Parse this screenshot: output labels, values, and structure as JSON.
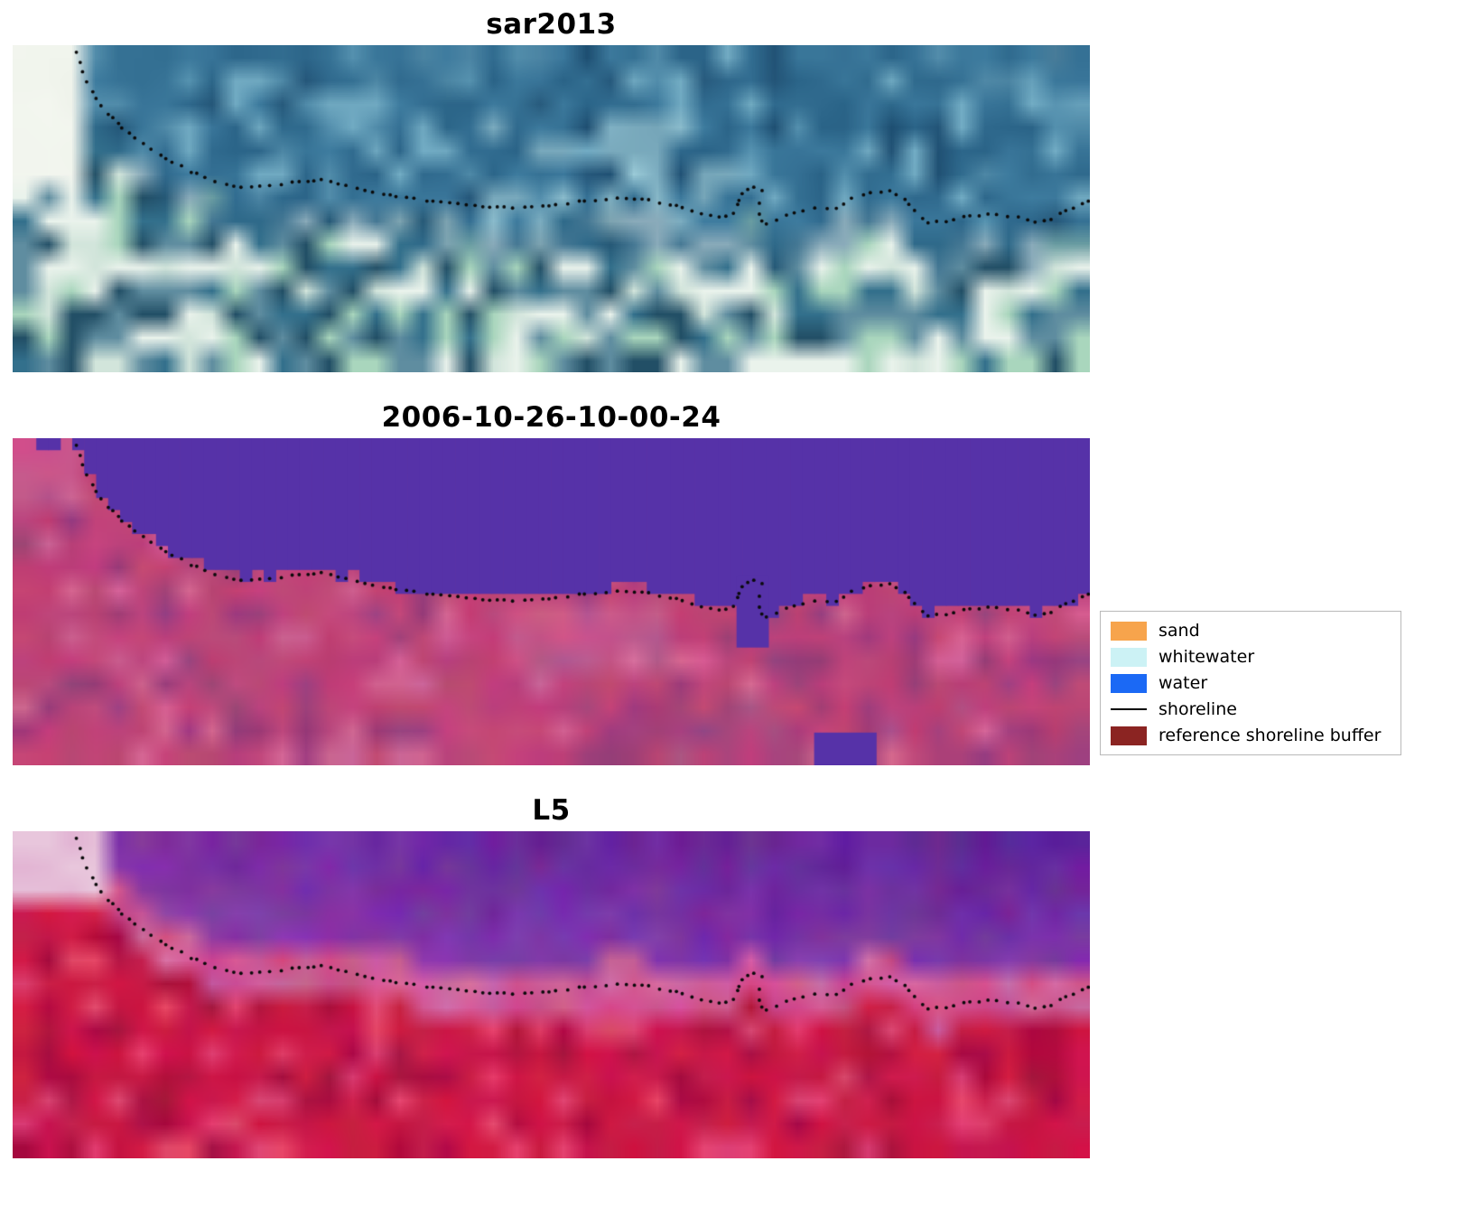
{
  "figure": {
    "background": "#ffffff",
    "panels": [
      {
        "title": "sar2013",
        "style": "sar"
      },
      {
        "title": "2006-10-26-10-00-24",
        "style": "classified"
      },
      {
        "title": "L5",
        "style": "l5"
      }
    ],
    "legend": {
      "items": [
        {
          "label": "sand",
          "kind": "patch",
          "color": "#f7a44c"
        },
        {
          "label": "whitewater",
          "kind": "patch",
          "color": "#ccf2f5"
        },
        {
          "label": "water",
          "kind": "patch",
          "color": "#1b69f5"
        },
        {
          "label": "shoreline",
          "kind": "line",
          "color": "#000000"
        },
        {
          "label": "reference shoreline buffer",
          "kind": "patch",
          "color": "#8b2422"
        }
      ]
    }
  },
  "chart_data": {
    "type": "heatmap",
    "title": "",
    "panels": [
      {
        "title": "sar2013",
        "content": "SAR satellite backscatter image in blue/teal tones with the mapped shoreline overlaid as a black dotted line"
      },
      {
        "title": "2006-10-26-10-00-24",
        "content": "Classified satellite scene: flat purple region = water class (top), pink/magenta = land; black dotted mapped shoreline follows the class boundary; small detached purple patch near bottom centre-right"
      },
      {
        "title": "L5",
        "content": "Landsat 5 false-colour image: purple sea (top), red land (bottom), pink surf/transition zone, black dotted mapped shoreline"
      }
    ],
    "legend_entries": [
      "sand",
      "whitewater",
      "water",
      "shoreline",
      "reference shoreline buffer"
    ],
    "axes": "image axes, ticks hidden",
    "shoreline_points_normalized": [
      [
        0.059,
        0.022
      ],
      [
        0.064,
        0.069
      ],
      [
        0.069,
        0.116
      ],
      [
        0.077,
        0.16
      ],
      [
        0.086,
        0.199
      ],
      [
        0.099,
        0.243
      ],
      [
        0.111,
        0.279
      ],
      [
        0.127,
        0.315
      ],
      [
        0.144,
        0.351
      ],
      [
        0.164,
        0.384
      ],
      [
        0.186,
        0.414
      ],
      [
        0.211,
        0.434
      ],
      [
        0.236,
        0.431
      ],
      [
        0.262,
        0.417
      ],
      [
        0.285,
        0.412
      ],
      [
        0.31,
        0.428
      ],
      [
        0.335,
        0.448
      ],
      [
        0.36,
        0.464
      ],
      [
        0.387,
        0.475
      ],
      [
        0.415,
        0.486
      ],
      [
        0.44,
        0.494
      ],
      [
        0.466,
        0.497
      ],
      [
        0.491,
        0.492
      ],
      [
        0.516,
        0.483
      ],
      [
        0.542,
        0.472
      ],
      [
        0.567,
        0.467
      ],
      [
        0.592,
        0.475
      ],
      [
        0.617,
        0.492
      ],
      [
        0.639,
        0.514
      ],
      [
        0.659,
        0.528
      ],
      [
        0.671,
        0.511
      ],
      [
        0.677,
        0.45
      ],
      [
        0.686,
        0.434
      ],
      [
        0.696,
        0.442
      ],
      [
        0.692,
        0.492
      ],
      [
        0.694,
        0.533
      ],
      [
        0.699,
        0.55
      ],
      [
        0.712,
        0.53
      ],
      [
        0.728,
        0.508
      ],
      [
        0.746,
        0.497
      ],
      [
        0.765,
        0.5
      ],
      [
        0.78,
        0.464
      ],
      [
        0.796,
        0.45
      ],
      [
        0.815,
        0.445
      ],
      [
        0.83,
        0.475
      ],
      [
        0.84,
        0.514
      ],
      [
        0.848,
        0.541
      ],
      [
        0.863,
        0.541
      ],
      [
        0.88,
        0.528
      ],
      [
        0.899,
        0.519
      ],
      [
        0.918,
        0.519
      ],
      [
        0.935,
        0.528
      ],
      [
        0.951,
        0.541
      ],
      [
        0.966,
        0.53
      ],
      [
        0.979,
        0.505
      ],
      [
        0.992,
        0.486
      ],
      [
        1.0,
        0.472
      ]
    ],
    "render": {
      "dots": {
        "color": "#0a0a0a",
        "radius": 1.9,
        "spacing": 9
      },
      "sar": {
        "water_dark": "#2a6387",
        "water_mid": "#3f7da0",
        "water_light": "#85bed2",
        "water_bright": "#c2e8ea",
        "land": [
          "#eaf3ec",
          "#a9d6bd",
          "#5f8da0",
          "#33708c",
          "#224f66",
          "#d2e5db"
        ],
        "corner": "#f5f8f1"
      },
      "classified": {
        "water": "#5632a8",
        "land_base": "#bf4478",
        "land_dark": "#8a3d7e",
        "land_light": "#d8709f",
        "corner": "#cf6b94",
        "water_extras": [
          {
            "x0": 0.672,
            "x1": 0.702,
            "y0": 0.42,
            "y1": 0.64
          },
          {
            "x0": 0.744,
            "x1": 0.802,
            "y0": 0.9,
            "y1": 1.0
          }
        ]
      },
      "l5": {
        "water_top": "#5a1e95",
        "water_low": "#9a48b5",
        "transition": "#cf74b8",
        "land_red": "#cc1a48",
        "land_dark": "#ad1040",
        "land_light": "#e0436e",
        "corner": "#e9c9dd"
      }
    }
  }
}
